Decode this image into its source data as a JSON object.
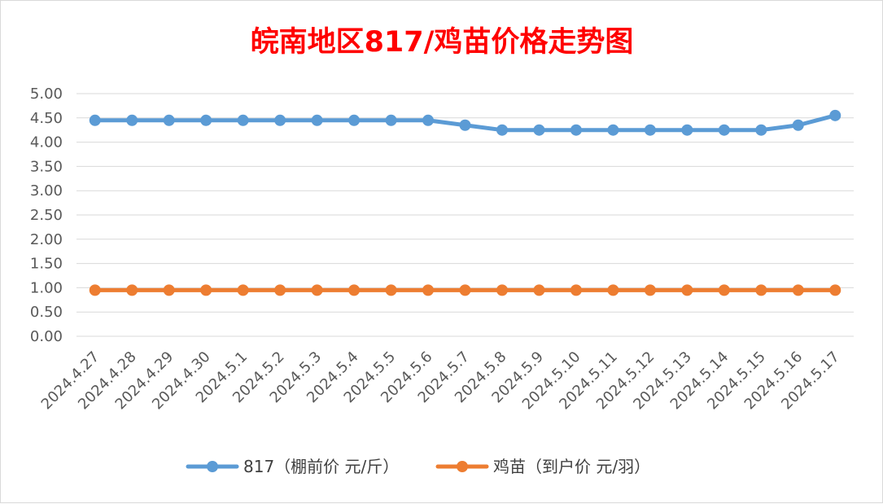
{
  "chart_data": {
    "type": "line",
    "title": "皖南地区817/鸡苗价格走势图",
    "title_color": "#ff0000",
    "categories": [
      "2024.4.27",
      "2024.4.28",
      "2024.4.29",
      "2024.4.30",
      "2024.5.1",
      "2024.5.2",
      "2024.5.3",
      "2024.5.4",
      "2024.5.5",
      "2024.5.6",
      "2024.5.7",
      "2024.5.8",
      "2024.5.9",
      "2024.5.10",
      "2024.5.11",
      "2024.5.12",
      "2024.5.13",
      "2024.5.14",
      "2024.5.15",
      "2024.5.16",
      "2024.5.17"
    ],
    "series": [
      {
        "name": "817（棚前价 元/斤）",
        "color": "#5b9bd5",
        "values": [
          4.45,
          4.45,
          4.45,
          4.45,
          4.45,
          4.45,
          4.45,
          4.45,
          4.45,
          4.45,
          4.35,
          4.25,
          4.25,
          4.25,
          4.25,
          4.25,
          4.25,
          4.25,
          4.25,
          4.35,
          4.55
        ]
      },
      {
        "name": "鸡苗（到户价 元/羽）",
        "color": "#ed7d31",
        "values": [
          0.95,
          0.95,
          0.95,
          0.95,
          0.95,
          0.95,
          0.95,
          0.95,
          0.95,
          0.95,
          0.95,
          0.95,
          0.95,
          0.95,
          0.95,
          0.95,
          0.95,
          0.95,
          0.95,
          0.95,
          0.95
        ]
      }
    ],
    "yticks": [
      "0.00",
      "0.50",
      "1.00",
      "1.50",
      "2.00",
      "2.50",
      "3.00",
      "3.50",
      "4.00",
      "4.50",
      "5.00"
    ],
    "ylim": [
      0,
      5
    ],
    "xlabel": "",
    "ylabel": "",
    "grid": true,
    "legend_position": "bottom"
  }
}
